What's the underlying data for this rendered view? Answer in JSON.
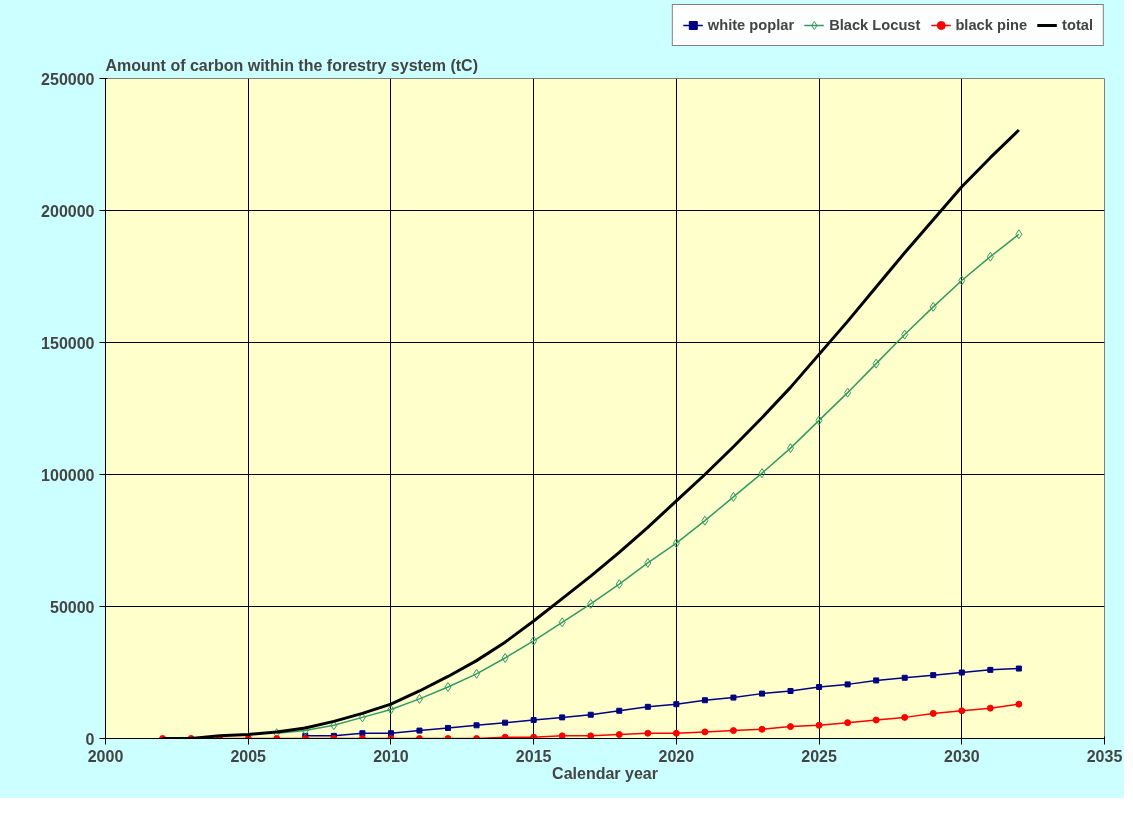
{
  "chart_data": {
    "type": "line",
    "title": "Amount of carbon within the forestry system (tC)",
    "xlabel": "Calendar year",
    "x": [
      2002,
      2003,
      2004,
      2005,
      2006,
      2007,
      2008,
      2009,
      2010,
      2011,
      2012,
      2013,
      2014,
      2015,
      2016,
      2017,
      2018,
      2019,
      2020,
      2021,
      2022,
      2023,
      2024,
      2025,
      2026,
      2027,
      2028,
      2029,
      2030,
      2031,
      2032
    ],
    "series": [
      {
        "name": "white poplar",
        "color": "#000080",
        "marker": "square",
        "values": [
          null,
          null,
          null,
          null,
          null,
          1000,
          1000,
          2000,
          2000,
          3000,
          4000,
          5000,
          6000,
          7000,
          8000,
          9000,
          10500,
          12000,
          13000,
          14500,
          15500,
          17000,
          18000,
          19500,
          20500,
          22000,
          23000,
          24000,
          25000,
          26000,
          26500
        ]
      },
      {
        "name": "Black Locust",
        "color": "#339966",
        "marker": "diamond",
        "values": [
          null,
          null,
          null,
          null,
          2000,
          3000,
          5000,
          8000,
          11000,
          15000,
          19500,
          24500,
          30500,
          37000,
          44000,
          51000,
          58500,
          66500,
          74000,
          82500,
          91500,
          100500,
          110000,
          120500,
          131000,
          142000,
          153000,
          163500,
          173500,
          182500,
          191000
        ]
      },
      {
        "name": "black pine",
        "color": "#ff0000",
        "marker": "circle",
        "values": [
          0,
          0,
          0,
          0,
          0,
          0,
          0,
          0,
          0,
          0,
          0,
          0,
          500,
          500,
          1000,
          1000,
          1500,
          2000,
          2000,
          2500,
          3000,
          3500,
          4500,
          5000,
          6000,
          7000,
          8000,
          9500,
          10500,
          11500,
          13000
        ]
      },
      {
        "name": "total",
        "color": "#000000",
        "marker": "none",
        "values": [
          0,
          0,
          1000,
          1500,
          2500,
          4000,
          6500,
          9500,
          13000,
          18000,
          23500,
          29500,
          36500,
          44500,
          53000,
          61500,
          70500,
          80000,
          90000,
          100000,
          110500,
          121500,
          133000,
          145500,
          158000,
          171000,
          184000,
          196500,
          209000,
          220000,
          230500
        ]
      }
    ],
    "xlim": [
      2000,
      2035
    ],
    "xticks": [
      2000,
      2005,
      2010,
      2015,
      2020,
      2025,
      2030,
      2035
    ],
    "ylim": [
      0,
      250000
    ],
    "yticks": [
      0,
      50000,
      100000,
      150000,
      200000,
      250000
    ],
    "grid": true,
    "legend": "top right"
  }
}
